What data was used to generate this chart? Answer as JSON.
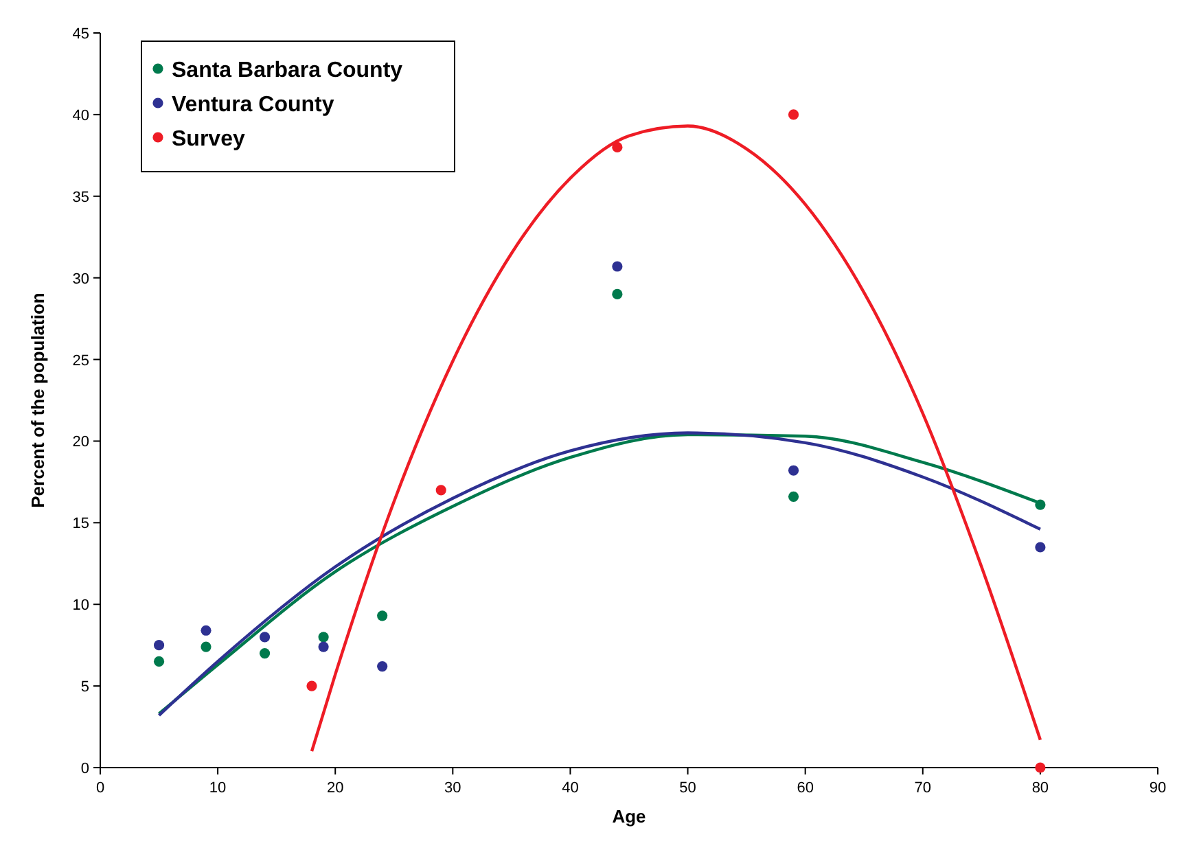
{
  "chart_data": {
    "type": "scatter",
    "xlabel": "Age",
    "ylabel": "Percent of the population",
    "xlim": [
      0,
      90
    ],
    "ylim": [
      0,
      45
    ],
    "xticks": [
      0,
      10,
      20,
      30,
      40,
      50,
      60,
      70,
      80,
      90
    ],
    "yticks": [
      0,
      5,
      10,
      15,
      20,
      25,
      30,
      35,
      40,
      45
    ],
    "grid": false,
    "legend": "top left",
    "marker": "circle",
    "series": [
      {
        "name": "Santa Barbara County",
        "color": "#007a4d",
        "x": [
          5,
          9,
          14,
          19,
          24,
          44,
          59,
          80
        ],
        "values": [
          6.5,
          7.4,
          7.0,
          8.0,
          9.3,
          29,
          16.6,
          16.1
        ]
      },
      {
        "name": "Ventura County",
        "color": "#2e3192",
        "x": [
          5,
          9,
          14,
          19,
          24,
          44,
          59,
          80
        ],
        "values": [
          7.5,
          8.4,
          8.0,
          7.4,
          6.2,
          30.7,
          18.2,
          13.5
        ]
      },
      {
        "name": "Survey",
        "color": "#ee1c25",
        "x": [
          18,
          29,
          44,
          59,
          80
        ],
        "values": [
          5,
          17,
          38,
          40,
          0
        ]
      },
      {
        "type": "line",
        "color": "#007a4d",
        "marker": "none",
        "x": [
          5,
          10,
          20,
          30,
          40,
          50,
          60,
          70,
          80
        ],
        "values": [
          3.3,
          6.3,
          12.0,
          16.0,
          19.0,
          20.4,
          20.3,
          18.7,
          16.2
        ]
      },
      {
        "type": "line",
        "color": "#2e3192",
        "marker": "none",
        "x": [
          5,
          10,
          20,
          30,
          40,
          50,
          60,
          70,
          80
        ],
        "values": [
          3.2,
          6.5,
          12.3,
          16.5,
          19.4,
          20.5,
          19.9,
          17.8,
          14.6
        ]
      },
      {
        "type": "line",
        "color": "#ee1c25",
        "marker": "none",
        "x": [
          18,
          20,
          25,
          30,
          35,
          40,
          45,
          50,
          55,
          60,
          65,
          70,
          75,
          80
        ],
        "values": [
          1.0,
          5.7,
          16.3,
          24.9,
          31.5,
          36.1,
          38.7,
          39.3,
          37.9,
          34.5,
          29.1,
          21.7,
          12.3,
          1.7
        ]
      }
    ]
  }
}
